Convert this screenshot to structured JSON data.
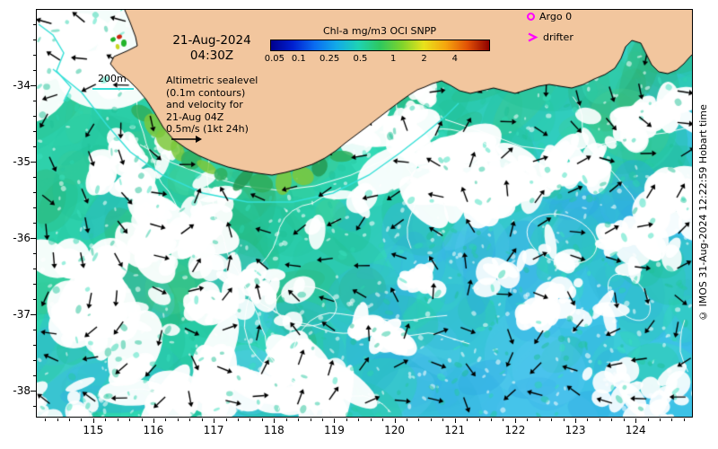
{
  "header": {
    "date": "21-Aug-2024",
    "time": "04:30Z"
  },
  "colorbar": {
    "title": "Chl-a mg/m3 OCI SNPP",
    "ticks": [
      "0.05",
      "0.1",
      "0.25",
      "0.5",
      "1",
      "2",
      "4"
    ],
    "colors": [
      "#00008f",
      "#0020d0",
      "#0a6cf0",
      "#12aae8",
      "#1ed2b4",
      "#2ec85e",
      "#7ed32c",
      "#e8e21c",
      "#f5a60e",
      "#e25206",
      "#8f0000"
    ]
  },
  "legend": {
    "argo": "Argo 0",
    "drifter": "drifter",
    "marker_color": "#ff00ff"
  },
  "info": {
    "lines": [
      "Altimetric sealevel",
      "(0.1m contours)",
      "and velocity for",
      "21-Aug 04Z",
      "0.5m/s (1kt 24h)"
    ]
  },
  "bathy": {
    "label": "200m"
  },
  "credit": "© IMOS 31-Aug-2024 12:22:59 Hobart time",
  "axes": {
    "x_ticks": [
      115,
      116,
      117,
      118,
      119,
      120,
      121,
      122,
      123,
      124
    ],
    "y_ticks": [
      -34,
      -35,
      -36,
      -37,
      -38
    ],
    "x_range": [
      114.05,
      124.95
    ],
    "y_range": [
      -38.35,
      -33.0
    ]
  },
  "map": {
    "seed": 20240821,
    "land_color": "#f2c69e",
    "coast_color": "#000000",
    "arrow_color": "#000000",
    "contour_color": "#ffffff",
    "bathy_color": "#35e0d8",
    "teals": [
      "#2bd3ad",
      "#25c7a0",
      "#3ae0bd",
      "#1fbf96"
    ],
    "greens": [
      "#27b97f",
      "#2fae6a",
      "#45cc8d"
    ],
    "blues": [
      "#38b4ec",
      "#2aa6e2",
      "#55c9f2",
      "#30b8d8"
    ],
    "coast_greens": [
      "#259a54",
      "#2fae5d",
      "#7cc83c"
    ]
  }
}
